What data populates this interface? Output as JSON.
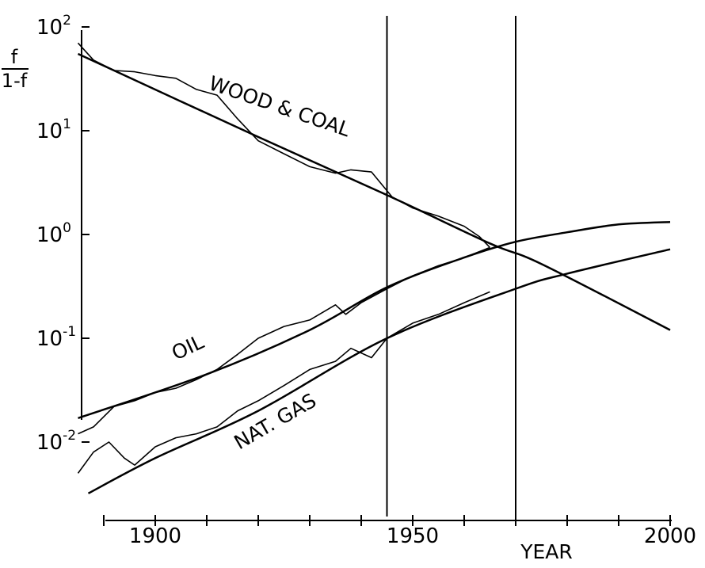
{
  "chart_data": {
    "type": "line",
    "yscale": "log",
    "ylabel_numerator": "f",
    "ylabel_denominator": "1-f",
    "xlabel": "YEAR",
    "xlim": [
      1885,
      2000
    ],
    "ylim": [
      0.003,
      100
    ],
    "x_ticks": [
      {
        "value": 1900,
        "label": "1900"
      },
      {
        "value": 1950,
        "label": "1950"
      },
      {
        "value": 2000,
        "label": "2000"
      }
    ],
    "y_ticks": [
      {
        "value": 100,
        "base": "10",
        "exp": "2"
      },
      {
        "value": 10,
        "base": "10",
        "exp": "1"
      },
      {
        "value": 1,
        "base": "10",
        "exp": "0"
      },
      {
        "value": 0.1,
        "base": "10",
        "exp": "-1"
      },
      {
        "value": 0.01,
        "base": "10",
        "exp": "-2"
      }
    ],
    "vertical_lines": [
      1945,
      1970
    ],
    "series": [
      {
        "name": "WOOD & COAL",
        "fit": {
          "x": [
            1885,
            1920,
            1945,
            1965,
            1975,
            2000
          ],
          "y": [
            55,
            8.7,
            2.4,
            0.82,
            0.52,
            0.12
          ]
        },
        "observed": {
          "x": [
            1885,
            1888,
            1892,
            1896,
            1900,
            1904,
            1908,
            1912,
            1916,
            1920,
            1925,
            1930,
            1935,
            1938,
            1942,
            1946,
            1950,
            1955,
            1960,
            1963,
            1965
          ],
          "y": [
            70,
            48,
            38,
            37,
            34,
            32,
            25,
            22,
            13,
            8.0,
            6.0,
            4.5,
            3.9,
            4.2,
            4.0,
            2.3,
            1.8,
            1.5,
            1.2,
            0.95,
            0.75
          ]
        }
      },
      {
        "name": "OIL",
        "fit": {
          "x": [
            1885,
            1910,
            1930,
            1945,
            1960,
            1970,
            1980,
            1990,
            2000
          ],
          "y": [
            0.017,
            0.045,
            0.12,
            0.31,
            0.6,
            0.85,
            1.05,
            1.25,
            1.32
          ]
        },
        "observed": {
          "x": [
            1885,
            1888,
            1892,
            1896,
            1900,
            1904,
            1908,
            1912,
            1916,
            1920,
            1925,
            1930,
            1935,
            1937,
            1940,
            1945,
            1950,
            1955,
            1960,
            1965
          ],
          "y": [
            0.012,
            0.014,
            0.022,
            0.025,
            0.03,
            0.033,
            0.04,
            0.05,
            0.07,
            0.1,
            0.13,
            0.15,
            0.21,
            0.17,
            0.22,
            0.3,
            0.4,
            0.5,
            0.6,
            0.75
          ]
        }
      },
      {
        "name": "NAT. GAS",
        "fit": {
          "x": [
            1887,
            1900,
            1920,
            1945,
            1970,
            1980,
            2000
          ],
          "y": [
            0.0032,
            0.007,
            0.02,
            0.1,
            0.3,
            0.42,
            0.72
          ]
        },
        "observed": {
          "x": [
            1885,
            1888,
            1891,
            1894,
            1896,
            1900,
            1904,
            1908,
            1912,
            1916,
            1920,
            1925,
            1930,
            1935,
            1938,
            1942,
            1945,
            1950,
            1955,
            1960,
            1965
          ],
          "y": [
            0.005,
            0.008,
            0.01,
            0.007,
            0.006,
            0.009,
            0.011,
            0.012,
            0.014,
            0.02,
            0.025,
            0.035,
            0.05,
            0.06,
            0.08,
            0.065,
            0.1,
            0.14,
            0.17,
            0.22,
            0.28
          ]
        }
      }
    ]
  }
}
